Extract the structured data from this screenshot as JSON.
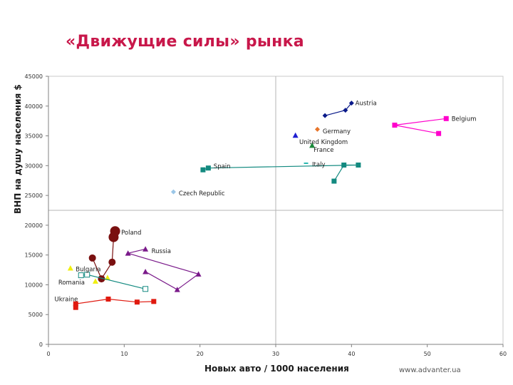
{
  "slide": {
    "title": "«Движущие силы» рынка",
    "website": "www.advanter.ua"
  },
  "chart_data": {
    "type": "scatter",
    "title": "«Движущие силы» рынка",
    "xlabel": "Новых авто / 1000 населения",
    "ylabel": "ВНП на душу населения  $",
    "xlim": [
      0,
      60
    ],
    "ylim": [
      0,
      45000
    ],
    "xticks": [
      0,
      10,
      20,
      30,
      40,
      50,
      60
    ],
    "yticks": [
      0,
      5000,
      10000,
      15000,
      20000,
      25000,
      30000,
      35000,
      40000,
      45000
    ],
    "grid": "major lines at x=30 and y=22500",
    "series": [
      {
        "name": "Austria",
        "color": "#0a1a8a",
        "marker": "diamond",
        "connected": true,
        "points": [
          [
            36.5,
            38400
          ],
          [
            39.2,
            39300
          ],
          [
            40.0,
            40500
          ]
        ]
      },
      {
        "name": "Belgium",
        "color": "#ff00cc",
        "marker": "square",
        "connected": true,
        "points": [
          [
            51.5,
            35400
          ],
          [
            45.7,
            36800
          ],
          [
            52.5,
            37900
          ]
        ]
      },
      {
        "name": "Germany",
        "color": "#e8752a",
        "marker": "diamond",
        "connected": false,
        "points": [
          [
            35.5,
            36100
          ]
        ]
      },
      {
        "name": "United Kingdom",
        "color": "#1f1fd1",
        "marker": "triangle",
        "connected": false,
        "points": [
          [
            32.6,
            35100
          ]
        ]
      },
      {
        "name": "France",
        "color": "#1a8a3a",
        "marker": "triangle",
        "connected": false,
        "points": [
          [
            34.8,
            33400
          ]
        ]
      },
      {
        "name": "Italy",
        "color": "#2ab8b0",
        "marker": "dash",
        "connected": false,
        "points": [
          [
            34.0,
            30400
          ]
        ]
      },
      {
        "name": "Spain",
        "color": "#138a80",
        "marker": "square",
        "connected": true,
        "points": [
          [
            20.4,
            29300
          ],
          [
            21.1,
            29600
          ],
          [
            40.9,
            30100
          ],
          [
            39.0,
            30100
          ],
          [
            37.7,
            27400
          ]
        ]
      },
      {
        "name": "Czech Republic",
        "color": "#9bc7e8",
        "marker": "diamond",
        "connected": false,
        "points": [
          [
            16.5,
            25600
          ]
        ]
      },
      {
        "name": "Poland",
        "color": "#7a1010",
        "marker": "circle",
        "connected": true,
        "points": [
          [
            8.8,
            19000
          ],
          [
            8.6,
            18000
          ],
          [
            8.4,
            13800
          ],
          [
            7.0,
            11000
          ],
          [
            5.8,
            14500
          ]
        ]
      },
      {
        "name": "Russia",
        "color": "#7a1a8a",
        "marker": "triangle",
        "connected": true,
        "points": [
          [
            12.8,
            16000
          ],
          [
            10.5,
            15300
          ],
          [
            19.8,
            11800
          ],
          [
            17.0,
            9200
          ],
          [
            12.8,
            12200
          ]
        ]
      },
      {
        "name": "Bulgaria",
        "color": "#f0ef10",
        "marker": "triangle",
        "connected": false,
        "points": [
          [
            2.9,
            12800
          ],
          [
            7.8,
            11200
          ],
          [
            6.2,
            10600
          ]
        ]
      },
      {
        "name": "Romania",
        "color": "#138a80",
        "marker": "hollow-square",
        "connected": true,
        "points": [
          [
            4.3,
            11600
          ],
          [
            5.1,
            11700
          ],
          [
            12.8,
            9300
          ]
        ]
      },
      {
        "name": "Ukraine",
        "color": "#e01a10",
        "marker": "square",
        "connected": true,
        "points": [
          [
            3.6,
            6200
          ],
          [
            3.6,
            6800
          ],
          [
            7.9,
            7600
          ],
          [
            11.7,
            7100
          ],
          [
            13.9,
            7200
          ]
        ]
      }
    ],
    "point_labels": [
      {
        "text": "Austria",
        "x": 40.5,
        "y": 40500
      },
      {
        "text": "Belgium",
        "x": 53.2,
        "y": 37900
      },
      {
        "text": "Germany",
        "x": 36.2,
        "y": 35800
      },
      {
        "text": "United Kingdom",
        "x": 33.1,
        "y": 34000
      },
      {
        "text": "France",
        "x": 35.0,
        "y": 32700
      },
      {
        "text": "Italy",
        "x": 34.8,
        "y": 30200
      },
      {
        "text": "Spain",
        "x": 21.8,
        "y": 29900
      },
      {
        "text": "Czech Republic",
        "x": 17.2,
        "y": 25400
      },
      {
        "text": "Poland",
        "x": 9.6,
        "y": 18800
      },
      {
        "text": "Russia",
        "x": 13.6,
        "y": 15700
      },
      {
        "text": "Bulgaria",
        "x": 3.6,
        "y": 12600
      },
      {
        "text": "Romania",
        "x": 1.3,
        "y": 10400
      },
      {
        "text": "Ukraine",
        "x": 0.8,
        "y": 7600
      }
    ]
  }
}
